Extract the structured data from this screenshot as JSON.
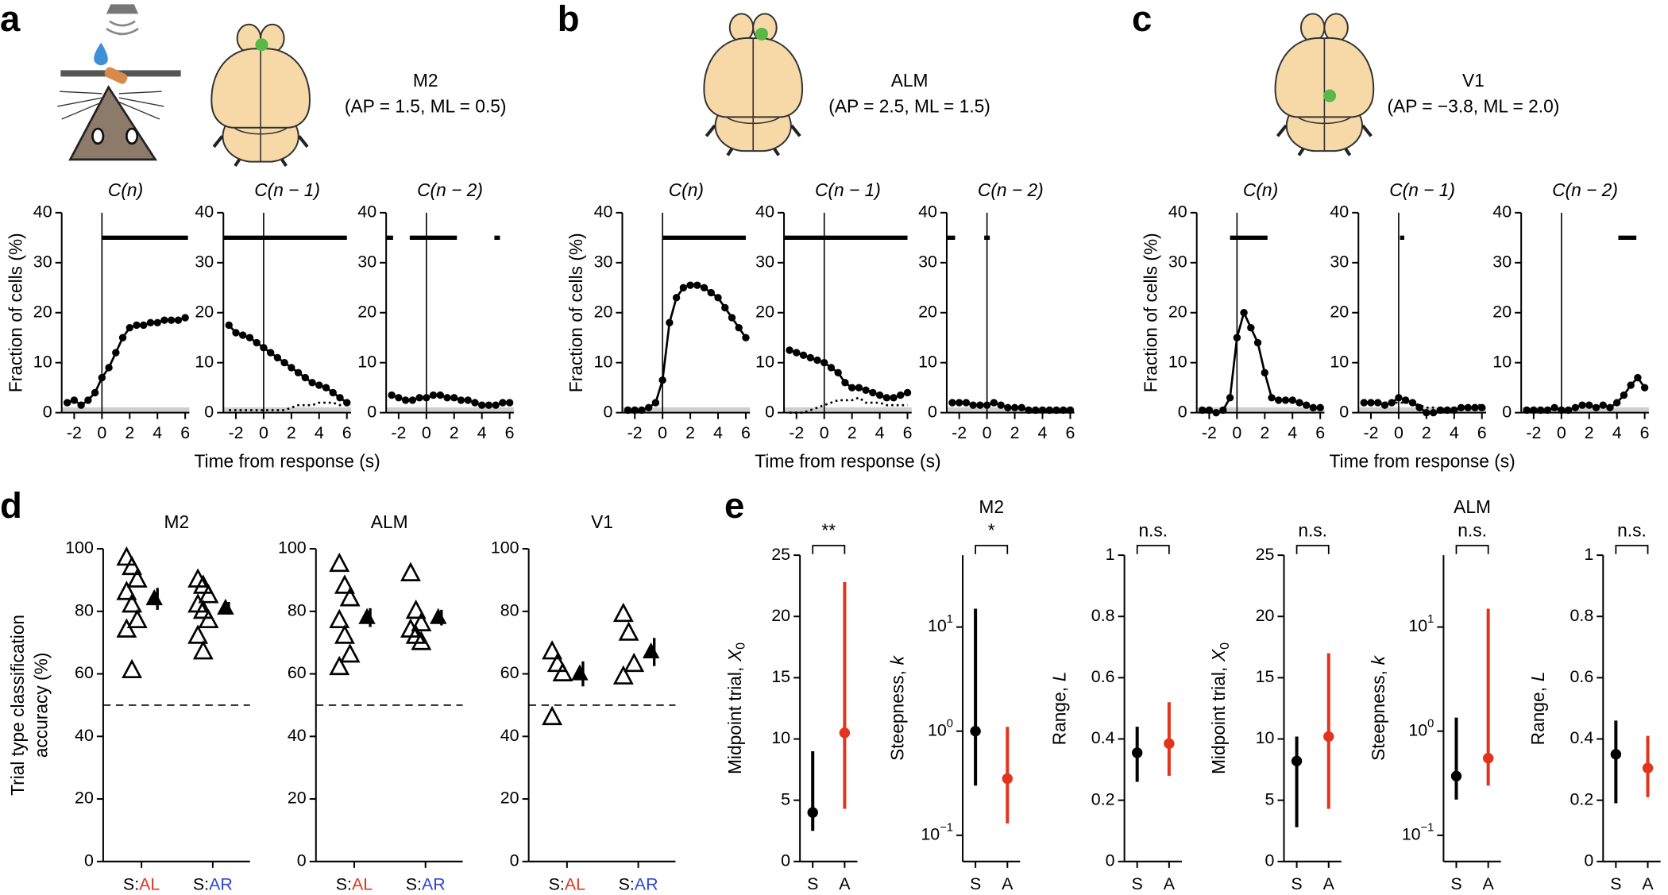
{
  "figure": {
    "panel_labels": [
      "a",
      "b",
      "c",
      "d",
      "e"
    ],
    "regions": [
      {
        "name": "M2",
        "coords": "(AP = 1.5, ML = 0.5)"
      },
      {
        "name": "ALM",
        "coords": "(AP = 2.5, ML = 1.5)"
      },
      {
        "name": "V1",
        "coords": "(AP = −3.8, ML = 2.0)"
      }
    ]
  },
  "chart_data": [
    {
      "type": "line",
      "title": "C(n)",
      "y_label": "Fraction of cells (%)",
      "x": [
        -2.5,
        -2,
        -1.5,
        -1,
        -0.5,
        0,
        0.5,
        1,
        1.5,
        2,
        2.5,
        3,
        3.5,
        4,
        4.5,
        5,
        5.5,
        6
      ],
      "xlim": [
        -2.9,
        6.3
      ],
      "xticks": [
        -2,
        0,
        2,
        4,
        6
      ],
      "ylim": [
        0,
        40
      ],
      "yticks": [
        0,
        10,
        20,
        30,
        40
      ],
      "sig_y": 35,
      "significance": [
        [
          0,
          6.2
        ]
      ],
      "series": [
        {
          "color": "#000000",
          "line_style": "solid",
          "markers": true,
          "values": [
            2,
            2.5,
            1.5,
            2.5,
            4,
            7,
            9,
            12,
            15,
            17,
            17.5,
            17.5,
            18,
            18,
            18.5,
            18.5,
            18.5,
            19
          ]
        }
      ]
    },
    {
      "type": "line",
      "title": "C(n − 1)",
      "x_label": "Time from response (s)",
      "x": [
        -2.5,
        -2,
        -1.5,
        -1,
        -0.5,
        0,
        0.5,
        1,
        1.5,
        2,
        2.5,
        3,
        3.5,
        4,
        4.5,
        5,
        5.5,
        6
      ],
      "xlim": [
        -2.9,
        6.3
      ],
      "xticks": [
        -2,
        0,
        2,
        4,
        6
      ],
      "ylim": [
        0,
        40
      ],
      "yticks": [
        0,
        10,
        20,
        30,
        40
      ],
      "sig_y": 35,
      "significance": [
        [
          -2.9,
          6
        ]
      ],
      "series": [
        {
          "color": "#000000",
          "line_style": "solid",
          "markers": true,
          "values": [
            17.5,
            16,
            15.5,
            15,
            14,
            13,
            12,
            11,
            10,
            9,
            8,
            7,
            6,
            5.5,
            5,
            4,
            3,
            2
          ]
        },
        {
          "color": "#000000",
          "line_style": "dotted",
          "markers": false,
          "values": [
            0.5,
            0.5,
            0.5,
            0.5,
            0.5,
            0.5,
            0.5,
            0.5,
            0.5,
            1,
            1.5,
            1.5,
            1.5,
            2,
            2,
            2,
            1.5,
            2
          ]
        }
      ]
    },
    {
      "type": "line",
      "title": "C(n − 2)",
      "x": [
        -2.5,
        -2,
        -1.5,
        -1,
        -0.5,
        0,
        0.5,
        1,
        1.5,
        2,
        2.5,
        3,
        3.5,
        4,
        4.5,
        5,
        5.5,
        6
      ],
      "xlim": [
        -2.9,
        6.3
      ],
      "xticks": [
        -2,
        0,
        2,
        4,
        6
      ],
      "ylim": [
        0,
        40
      ],
      "yticks": [
        0,
        10,
        20,
        30,
        40
      ],
      "sig_y": 35,
      "significance": [
        [
          -2.9,
          -2.4
        ],
        [
          -1.2,
          2.2
        ],
        [
          4.9,
          5.3
        ]
      ],
      "series": [
        {
          "color": "#000000",
          "line_style": "solid",
          "markers": true,
          "values": [
            3.5,
            3,
            2.5,
            2.5,
            3,
            3,
            3.5,
            3.5,
            3,
            3,
            2.5,
            2.5,
            2,
            1.5,
            1.5,
            1.5,
            2,
            2
          ]
        }
      ]
    },
    {
      "type": "line",
      "title": "C(n)",
      "y_label": "Fraction of cells (%)",
      "x": [
        -2.5,
        -2,
        -1.5,
        -1,
        -0.5,
        0,
        0.5,
        1,
        1.5,
        2,
        2.5,
        3,
        3.5,
        4,
        4.5,
        5,
        5.5,
        6
      ],
      "xlim": [
        -2.9,
        6.3
      ],
      "xticks": [
        -2,
        0,
        2,
        4,
        6
      ],
      "ylim": [
        0,
        40
      ],
      "yticks": [
        0,
        10,
        20,
        30,
        40
      ],
      "sig_y": 35,
      "significance": [
        [
          0,
          6
        ]
      ],
      "series": [
        {
          "color": "#000000",
          "line_style": "solid",
          "markers": true,
          "values": [
            0.5,
            0.5,
            0.5,
            1,
            2,
            6.5,
            18,
            23,
            25,
            25.5,
            25.5,
            25,
            24,
            23,
            21,
            19,
            17,
            15
          ]
        }
      ]
    },
    {
      "type": "line",
      "title": "C(n − 1)",
      "x_label": "Time from response (s)",
      "x": [
        -2.5,
        -2,
        -1.5,
        -1,
        -0.5,
        0,
        0.5,
        1,
        1.5,
        2,
        2.5,
        3,
        3.5,
        4,
        4.5,
        5,
        5.5,
        6
      ],
      "xlim": [
        -2.9,
        6.3
      ],
      "xticks": [
        -2,
        0,
        2,
        4,
        6
      ],
      "ylim": [
        0,
        40
      ],
      "yticks": [
        0,
        10,
        20,
        30,
        40
      ],
      "sig_y": 35,
      "significance": [
        [
          -2.9,
          6
        ]
      ],
      "series": [
        {
          "color": "#000000",
          "line_style": "solid",
          "markers": true,
          "values": [
            12.5,
            12,
            11.5,
            11,
            10.5,
            10,
            9,
            8,
            6,
            5,
            5,
            4.5,
            4,
            3.5,
            3,
            3,
            3.5,
            4
          ]
        },
        {
          "color": "#000000",
          "line_style": "dotted",
          "markers": false,
          "values": [
            0,
            0,
            0,
            0.5,
            1,
            1.5,
            2,
            2.5,
            2.5,
            2.5,
            3,
            2,
            2,
            2,
            1.5,
            1.5,
            1.5,
            1.5
          ]
        }
      ]
    },
    {
      "type": "line",
      "title": "C(n − 2)",
      "x": [
        -2.5,
        -2,
        -1.5,
        -1,
        -0.5,
        0,
        0.5,
        1,
        1.5,
        2,
        2.5,
        3,
        3.5,
        4,
        4.5,
        5,
        5.5,
        6
      ],
      "xlim": [
        -2.9,
        6.3
      ],
      "xticks": [
        -2,
        0,
        2,
        4,
        6
      ],
      "ylim": [
        0,
        40
      ],
      "yticks": [
        0,
        10,
        20,
        30,
        40
      ],
      "sig_y": 35,
      "significance": [
        [
          -2.9,
          -2.3
        ],
        [
          -0.2,
          0.2
        ]
      ],
      "series": [
        {
          "color": "#000000",
          "line_style": "solid",
          "markers": true,
          "values": [
            2,
            2,
            2,
            1.5,
            1.5,
            1.5,
            2,
            1.5,
            1,
            1,
            1,
            0.5,
            0.5,
            0.5,
            0.5,
            0.5,
            0.5,
            0.5
          ]
        }
      ]
    },
    {
      "type": "line",
      "title": "C(n)",
      "y_label": "Fraction of cells (%)",
      "x": [
        -2.5,
        -2,
        -1.5,
        -1,
        -0.5,
        0,
        0.5,
        1,
        1.5,
        2,
        2.5,
        3,
        3.5,
        4,
        4.5,
        5,
        5.5,
        6
      ],
      "xlim": [
        -2.9,
        6.3
      ],
      "xticks": [
        -2,
        0,
        2,
        4,
        6
      ],
      "ylim": [
        0,
        40
      ],
      "yticks": [
        0,
        10,
        20,
        30,
        40
      ],
      "sig_y": 35,
      "significance": [
        [
          -0.5,
          2.2
        ]
      ],
      "series": [
        {
          "color": "#000000",
          "line_style": "solid",
          "markers": true,
          "values": [
            0.5,
            0.5,
            0,
            0.5,
            3,
            15,
            20,
            17,
            14,
            8,
            3,
            2.5,
            2.5,
            2.5,
            2,
            1.5,
            1,
            1
          ]
        }
      ]
    },
    {
      "type": "line",
      "title": "C(n − 1)",
      "x_label": "Time from response (s)",
      "x": [
        -2.5,
        -2,
        -1.5,
        -1,
        -0.5,
        0,
        0.5,
        1,
        1.5,
        2,
        2.5,
        3,
        3.5,
        4,
        4.5,
        5,
        5.5,
        6
      ],
      "xlim": [
        -2.9,
        6.3
      ],
      "xticks": [
        -2,
        0,
        2,
        4,
        6
      ],
      "ylim": [
        0,
        40
      ],
      "yticks": [
        0,
        10,
        20,
        30,
        40
      ],
      "sig_y": 35,
      "significance": [
        [
          0.1,
          0.4
        ]
      ],
      "series": [
        {
          "color": "#000000",
          "line_style": "solid",
          "markers": true,
          "values": [
            2,
            2,
            2,
            1.5,
            2,
            3,
            2.5,
            2,
            1,
            0,
            0,
            0.5,
            0.5,
            0.5,
            1,
            1,
            1,
            1
          ]
        },
        {
          "color": "#000000",
          "line_style": "dotted",
          "markers": false,
          "values": [
            2.5,
            2.5,
            2,
            2,
            2,
            2,
            2,
            2,
            1.5,
            1,
            1,
            0.5,
            1,
            1,
            1,
            1.5,
            1.5,
            1.5
          ]
        }
      ]
    },
    {
      "type": "line",
      "title": "C(n − 2)",
      "x": [
        -2.5,
        -2,
        -1.5,
        -1,
        -0.5,
        0,
        0.5,
        1,
        1.5,
        2,
        2.5,
        3,
        3.5,
        4,
        4.5,
        5,
        5.5,
        6
      ],
      "xlim": [
        -2.9,
        6.3
      ],
      "xticks": [
        -2,
        0,
        2,
        4,
        6
      ],
      "ylim": [
        0,
        40
      ],
      "yticks": [
        0,
        10,
        20,
        30,
        40
      ],
      "sig_y": 35,
      "significance": [
        [
          4.1,
          5.4
        ]
      ],
      "series": [
        {
          "color": "#000000",
          "line_style": "solid",
          "markers": true,
          "values": [
            0.5,
            0.5,
            0.5,
            0.5,
            1,
            0.5,
            0.5,
            1,
            1.5,
            1.5,
            1,
            1.5,
            1,
            2,
            3.5,
            5.5,
            7,
            5
          ]
        }
      ]
    },
    {
      "type": "scatter",
      "title": "M2",
      "y_label": [
        "Trial type classification",
        "accuracy (%)"
      ],
      "ylim": [
        0,
        100
      ],
      "yticks": [
        0,
        20,
        40,
        60,
        80,
        100
      ],
      "chance": 50,
      "color": "#000000",
      "categories": [
        {
          "prefix": "S:",
          "label": "AL",
          "color": "#e2341d"
        },
        {
          "prefix": "S:",
          "label": "AR",
          "color": "#2c46d6"
        }
      ],
      "individual": [
        [
          97,
          94,
          90,
          86,
          82,
          77,
          74,
          61
        ],
        [
          90,
          88,
          85,
          82,
          80,
          77,
          72,
          67
        ]
      ],
      "mean": [
        84,
        81
      ],
      "error": [
        3.5,
        2
      ]
    },
    {
      "type": "scatter",
      "title": "ALM",
      "ylim": [
        0,
        100
      ],
      "yticks": [
        0,
        20,
        40,
        60,
        80,
        100
      ],
      "chance": 50,
      "color": "#000000",
      "categories": [
        {
          "prefix": "S:",
          "label": "AL",
          "color": "#e2341d"
        },
        {
          "prefix": "S:",
          "label": "AR",
          "color": "#2c46d6"
        }
      ],
      "individual": [
        [
          95,
          88,
          84,
          77,
          72,
          66,
          62
        ],
        [
          92,
          80,
          76,
          74,
          72,
          70
        ]
      ],
      "mean": [
        78,
        78
      ],
      "error": [
        3,
        2.5
      ]
    },
    {
      "type": "scatter",
      "title": "V1",
      "ylim": [
        0,
        100
      ],
      "yticks": [
        0,
        20,
        40,
        60,
        80,
        100
      ],
      "chance": 50,
      "color": "#000000",
      "categories": [
        {
          "prefix": "S:",
          "label": "AL",
          "color": "#e2341d"
        },
        {
          "prefix": "S:",
          "label": "AR",
          "color": "#2c46d6"
        }
      ],
      "individual": [
        [
          67,
          63,
          60,
          46
        ],
        [
          79,
          73,
          63,
          59
        ]
      ],
      "mean": [
        60,
        67
      ],
      "error": [
        4,
        4.5
      ]
    },
    {
      "type": "errorbar",
      "y_label": "Midpoint trial,",
      "y_label_var": "X",
      "y_label_sub": "0",
      "sig": "**",
      "categories": [
        "S",
        "A"
      ],
      "colors": [
        "#000000",
        "#e2341d"
      ],
      "ylim": [
        0,
        25
      ],
      "yticks": [
        0,
        5,
        10,
        15,
        20,
        25
      ],
      "values": [
        4,
        10.5
      ],
      "lower": [
        2.5,
        4.3
      ],
      "upper": [
        9,
        22.8
      ]
    },
    {
      "type": "errorbar",
      "group_title": "M2",
      "y_label": "Steepness,",
      "y_label_var": "k",
      "sig": "*",
      "categories": [
        "S",
        "A"
      ],
      "colors": [
        "#000000",
        "#e2341d"
      ],
      "log_scale": true,
      "ylim": [
        0.056,
        49
      ],
      "yticks": [
        {
          "value": 0.1,
          "label": "10",
          "exponent": "−1"
        },
        {
          "value": 1,
          "label": "10",
          "exponent": "0"
        },
        {
          "value": 10,
          "label": "10",
          "exponent": "1"
        }
      ],
      "values": [
        1,
        0.35
      ],
      "lower": [
        0.3,
        0.13
      ],
      "upper": [
        15,
        1.1
      ]
    },
    {
      "type": "errorbar",
      "y_label": "Range,",
      "y_label_var": "L",
      "sig": "n.s.",
      "categories": [
        "S",
        "A"
      ],
      "colors": [
        "#000000",
        "#e2341d"
      ],
      "ylim": [
        0,
        1
      ],
      "yticks": [
        0,
        0.2,
        0.4,
        0.6,
        0.8,
        1
      ],
      "values": [
        0.355,
        0.385
      ],
      "lower": [
        0.26,
        0.28
      ],
      "upper": [
        0.44,
        0.52
      ]
    },
    {
      "type": "errorbar",
      "y_label": "Midpoint trial,",
      "y_label_var": "X",
      "y_label_sub": "0",
      "sig": "n.s.",
      "categories": [
        "S",
        "A"
      ],
      "colors": [
        "#000000",
        "#e2341d"
      ],
      "ylim": [
        0,
        25
      ],
      "yticks": [
        0,
        5,
        10,
        15,
        20,
        25
      ],
      "values": [
        8.2,
        10.2
      ],
      "lower": [
        2.8,
        4.3
      ],
      "upper": [
        10.2,
        17
      ]
    },
    {
      "type": "errorbar",
      "group_title": "ALM",
      "y_label": "Steepness,",
      "y_label_var": "k",
      "sig": "n.s.",
      "categories": [
        "S",
        "A"
      ],
      "colors": [
        "#000000",
        "#e2341d"
      ],
      "log_scale": true,
      "ylim": [
        0.056,
        49
      ],
      "yticks": [
        {
          "value": 0.1,
          "label": "10",
          "exponent": "−1"
        },
        {
          "value": 1,
          "label": "10",
          "exponent": "0"
        },
        {
          "value": 10,
          "label": "10",
          "exponent": "1"
        }
      ],
      "values": [
        0.37,
        0.55
      ],
      "lower": [
        0.22,
        0.3
      ],
      "upper": [
        1.35,
        15
      ]
    },
    {
      "type": "errorbar",
      "y_label": "Range,",
      "y_label_var": "L",
      "sig": "n.s.",
      "categories": [
        "S",
        "A"
      ],
      "colors": [
        "#000000",
        "#e2341d"
      ],
      "ylim": [
        0,
        1
      ],
      "yticks": [
        0,
        0.2,
        0.4,
        0.6,
        0.8,
        1
      ],
      "values": [
        0.35,
        0.305
      ],
      "lower": [
        0.19,
        0.21
      ],
      "upper": [
        0.46,
        0.41
      ]
    }
  ]
}
